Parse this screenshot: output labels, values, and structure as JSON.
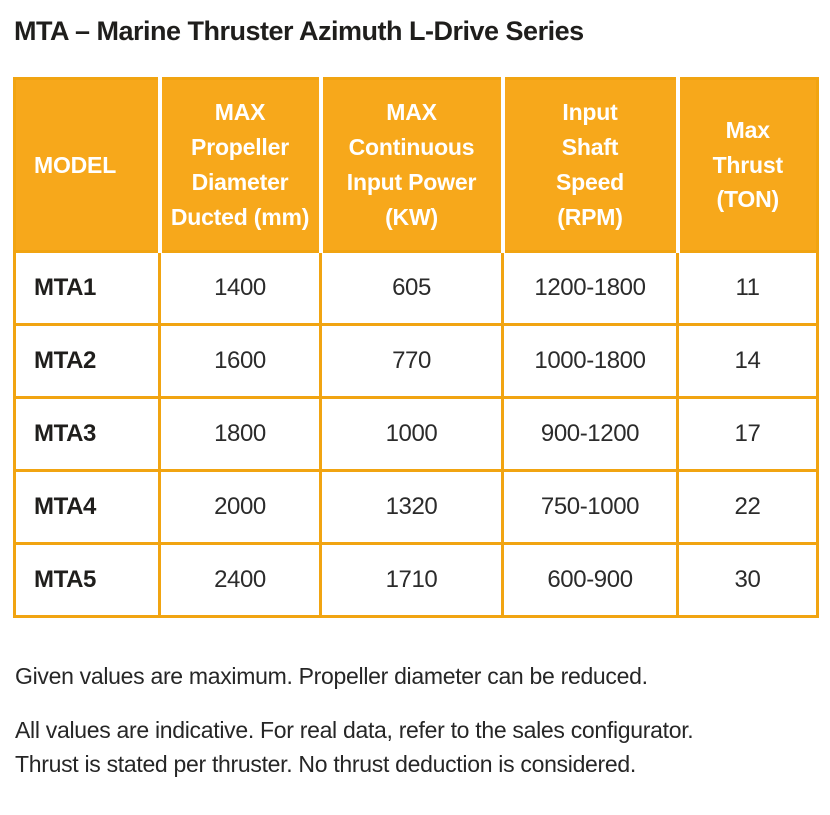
{
  "page": {
    "title": "MTA – Marine Thruster Azimuth L-Drive Series"
  },
  "colors": {
    "header_background": "#F7A81B",
    "table_border": "#F1A411",
    "header_text": "#FFFFFF",
    "body_text": "#2B2B2B"
  },
  "table": {
    "columns": [
      {
        "key": "model",
        "label": "MODEL"
      },
      {
        "key": "propeller_diameter",
        "label": "MAX\nPropeller\nDiameter\nDucted (mm)"
      },
      {
        "key": "input_power",
        "label": "MAX\nContinuous\nInput Power\n(KW)"
      },
      {
        "key": "shaft_speed",
        "label": "Input\nShaft\nSpeed\n(RPM)"
      },
      {
        "key": "max_thrust",
        "label": "Max\nThrust\n(TON)"
      }
    ],
    "rows": [
      {
        "model": "MTA1",
        "cells": [
          "1400",
          "605",
          "1200-1800",
          "11"
        ]
      },
      {
        "model": "MTA2",
        "cells": [
          "1600",
          "770",
          "1000-1800",
          "14"
        ]
      },
      {
        "model": "MTA3",
        "cells": [
          "1800",
          "1000",
          "900-1200",
          "17"
        ]
      },
      {
        "model": "MTA4",
        "cells": [
          "2000",
          "1320",
          "750-1000",
          "22"
        ]
      },
      {
        "model": "MTA5",
        "cells": [
          "2400",
          "1710",
          "600-900",
          "30"
        ]
      }
    ]
  },
  "notes": {
    "note1": "Given values are maximum. Propeller diameter can be reduced.",
    "note2": "All values are indicative. For real data, refer to the sales configurator.\nThrust is stated per thruster. No thrust deduction is considered."
  }
}
